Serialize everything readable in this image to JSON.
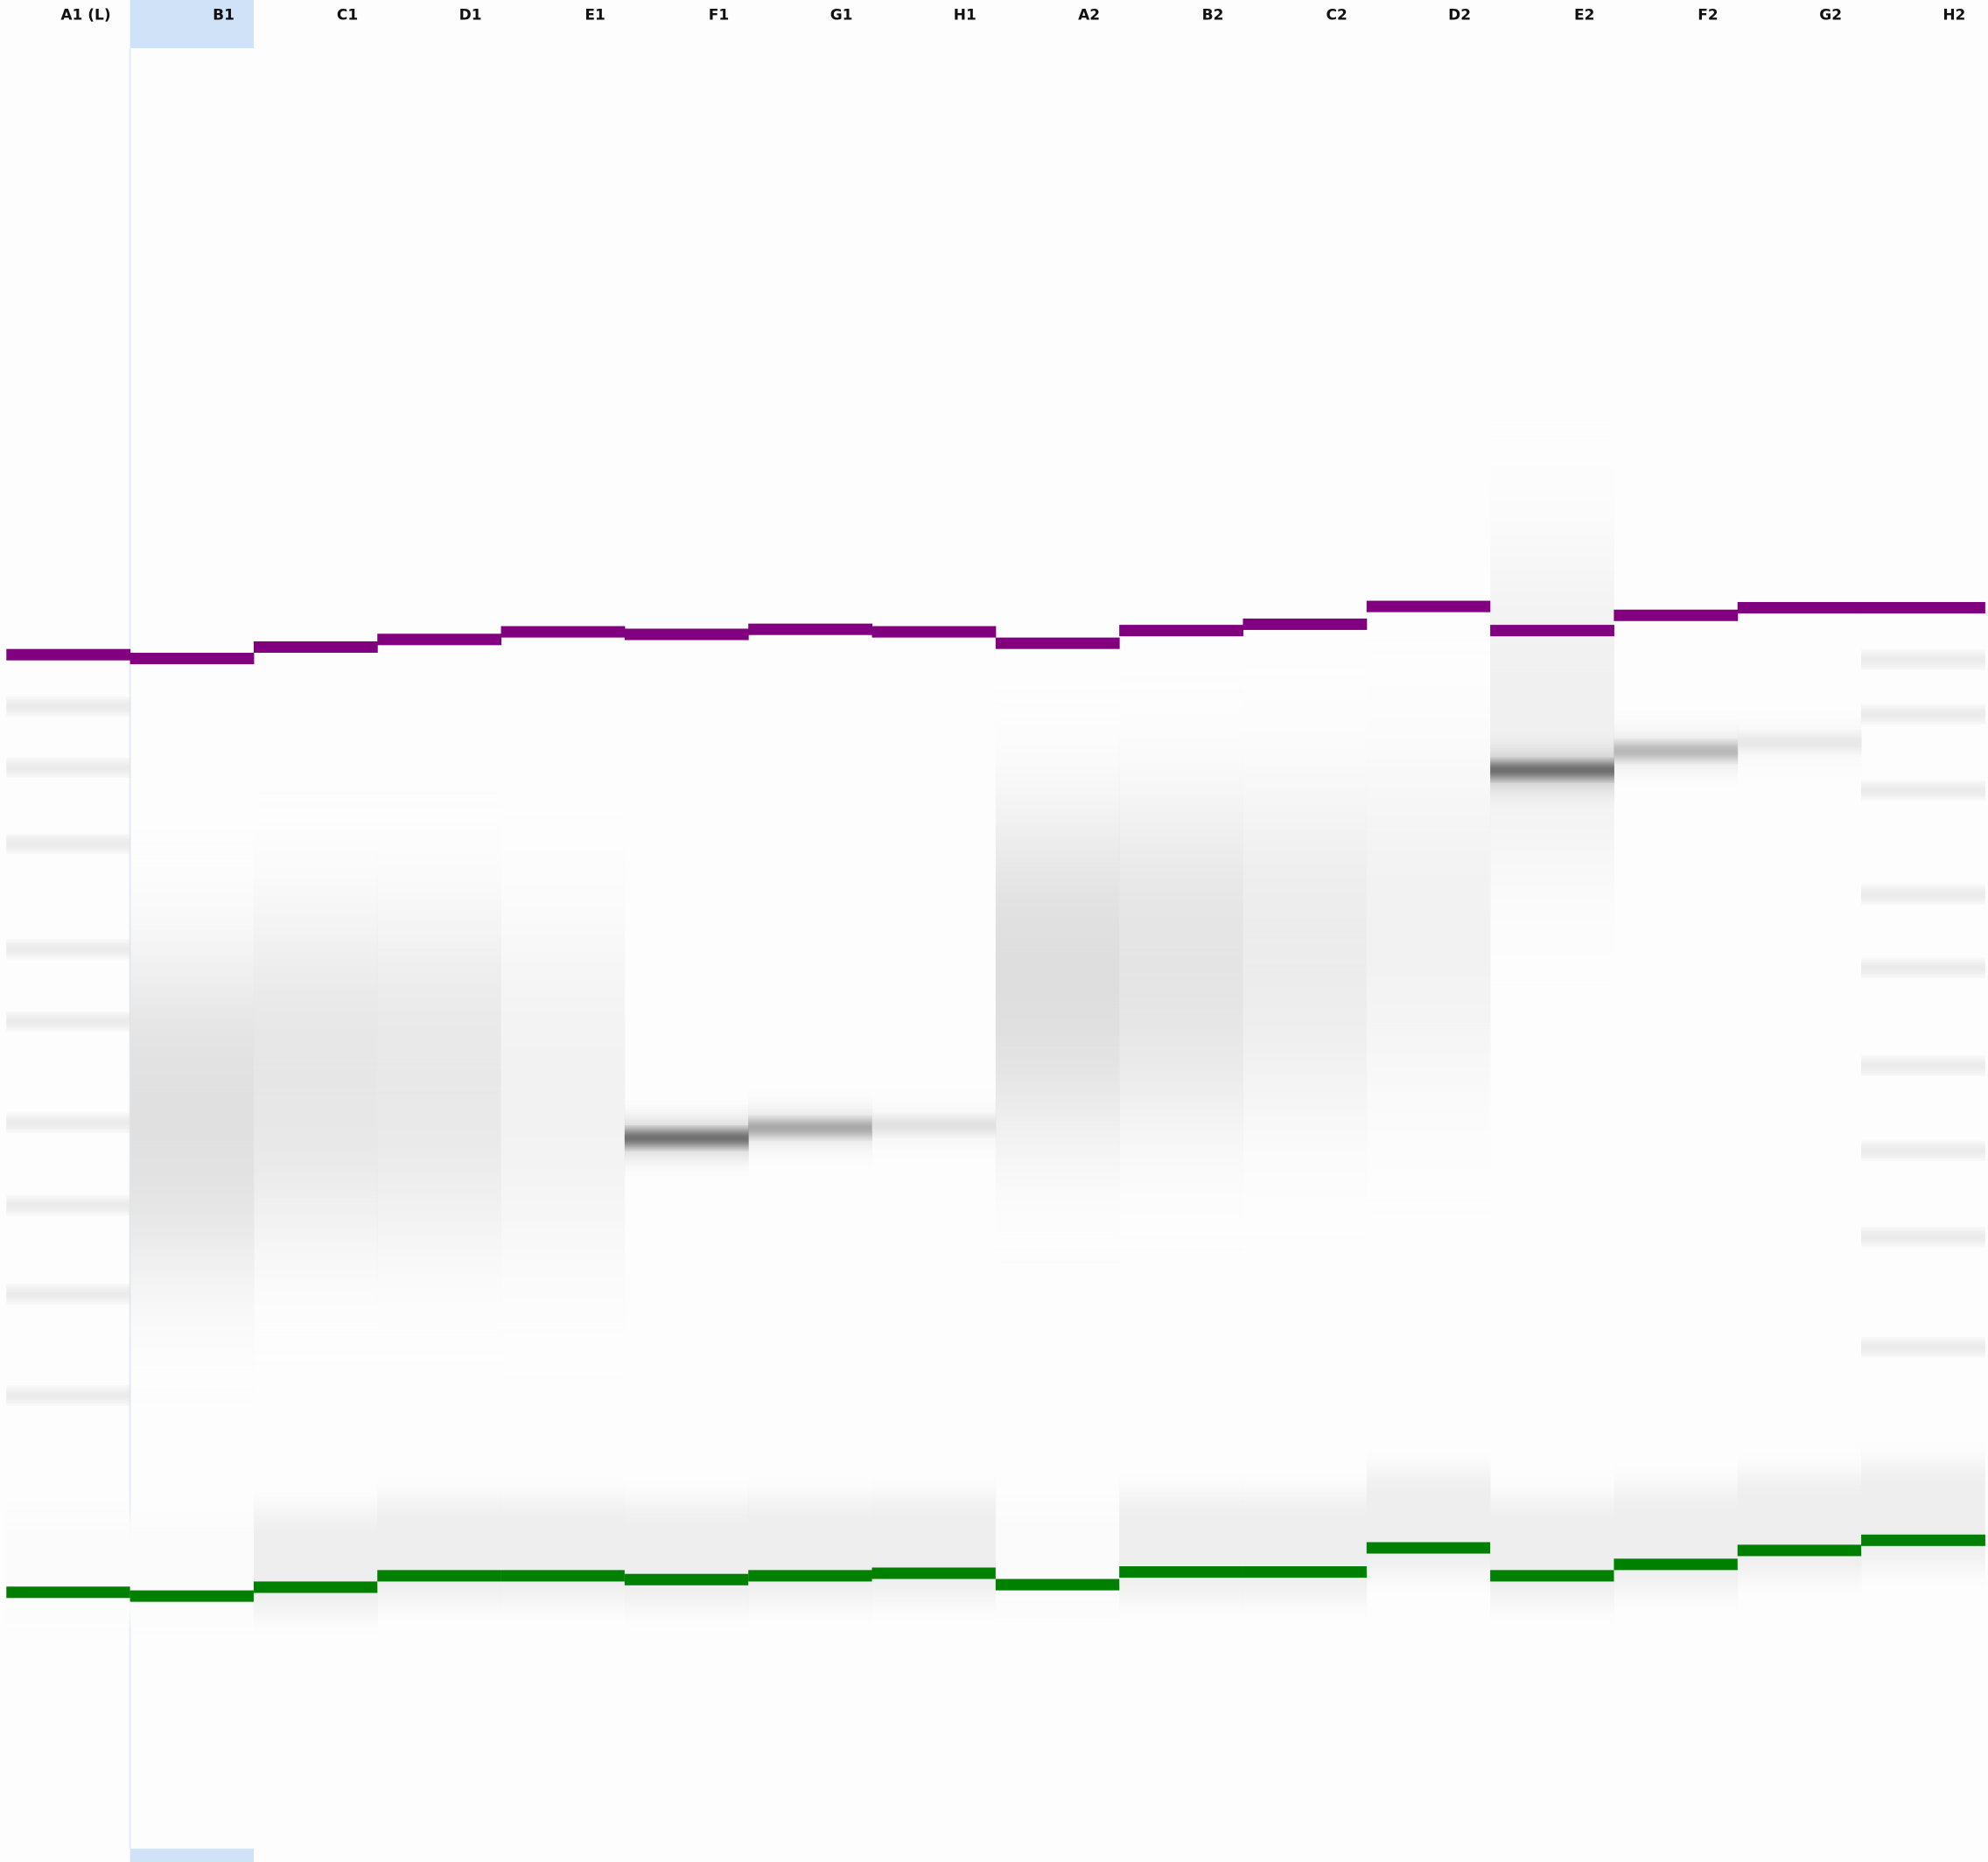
{
  "lanes": [
    "A1 (L)",
    "B1",
    "C1",
    "D1",
    "E1",
    "F1",
    "G1",
    "H1",
    "A2",
    "B2",
    "C2",
    "D2",
    "E2",
    "F2",
    "G2",
    "H2"
  ]
}
